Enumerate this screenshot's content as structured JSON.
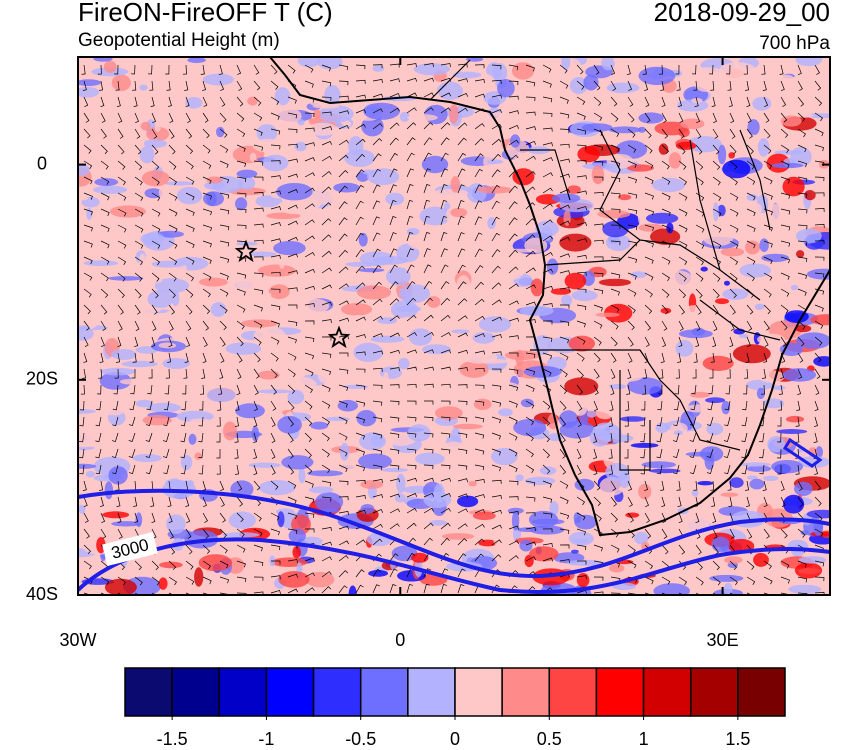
{
  "header": {
    "title": "FireON-FireOFF T (C)",
    "subtitle": "Geopotential Height (m)",
    "date": "2018-09-29_00",
    "level": "700 hPa"
  },
  "map": {
    "xlim": [
      -30,
      40
    ],
    "ylim": [
      -40,
      10
    ],
    "xticks": [
      {
        "value": -30,
        "label": "30W"
      },
      0,
      {
        "value": 30,
        "label": "30E"
      }
    ],
    "yticks": [
      0,
      {
        "value": -20,
        "label": "20S"
      },
      {
        "value": -40,
        "label": "40S"
      }
    ],
    "contour_label": 3000
  },
  "colorbar": {
    "colors": [
      "#0a0a70",
      "#00008e",
      "#0000c8",
      "#0000ff",
      "#2e2eff",
      "#6e6eff",
      "#b2b2ff",
      "#ffc8c8",
      "#ff8a8a",
      "#ff4444",
      "#ff0000",
      "#d20000",
      "#a40000",
      "#780000"
    ],
    "lim": [
      -1.75,
      1.75
    ],
    "ticks": [
      -1.5,
      -1,
      -0.5,
      0,
      0.5,
      1,
      1.5
    ]
  }
}
